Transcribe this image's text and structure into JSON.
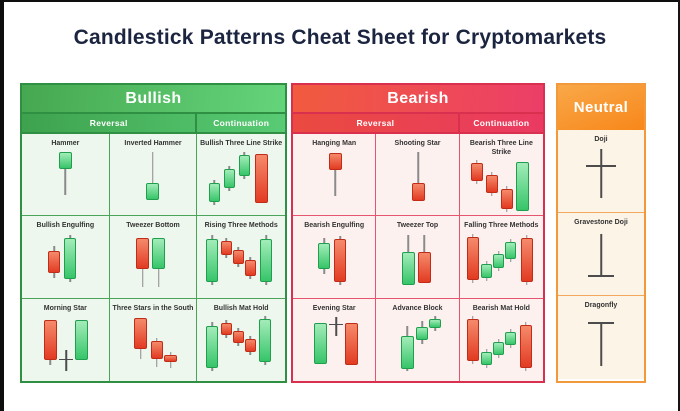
{
  "title": "Candlestick Patterns Cheat Sheet for Cryptomarkets",
  "palette": {
    "title_text": "#1c2540",
    "frame": "#0e0e0e",
    "bullish_border": "#2f9043",
    "bullish_header_gradient": [
      "#46a850",
      "#64d47b"
    ],
    "bullish_cell_bg": "#edf7ee",
    "bearish_border": "#d8304e",
    "bearish_header_gradient": [
      "#f15b3e",
      "#ec3e68"
    ],
    "bearish_cell_bg": "#fdf1f0",
    "neutral_border": "#f2993c",
    "neutral_header_gradient": [
      "#f9a849",
      "#f8871a"
    ],
    "neutral_cell_bg": "#fdf4e8",
    "candle_green": [
      "#a3ecb9",
      "#37c569"
    ],
    "candle_red": [
      "#f58a6b",
      "#e23b22"
    ],
    "wick": "#8a8a8a",
    "doji_line": "#4c4c4c"
  },
  "sections": [
    {
      "id": "bullish",
      "title": "Bullish",
      "subheaders": [
        "Reversal",
        "Continuation"
      ],
      "patterns": [
        {
          "label": "Hammer",
          "marks": [
            {
              "x": 42,
              "w": 13,
              "bt": 2,
              "bb": 19,
              "wt": 2,
              "wb": 45,
              "c": "g"
            }
          ]
        },
        {
          "label": "Inverted Hammer",
          "marks": [
            {
              "x": 42,
              "w": 13,
              "bt": 33,
              "bb": 50,
              "wt": 2,
              "wb": 50,
              "c": "g"
            }
          ]
        },
        {
          "label": "Bullish Three Line Strike",
          "marks": [
            {
              "x": 15,
              "w": 11,
              "bt": 33,
              "bb": 52,
              "wt": 30,
              "wb": 55,
              "c": "g"
            },
            {
              "x": 30,
              "w": 11,
              "bt": 19,
              "bb": 38,
              "wt": 16,
              "wb": 41,
              "c": "g"
            },
            {
              "x": 45,
              "w": 11,
              "bt": 5,
              "bb": 26,
              "wt": 2,
              "wb": 29,
              "c": "g"
            },
            {
              "x": 62,
              "w": 13,
              "bt": 4,
              "bb": 53,
              "wt": 4,
              "wb": 53,
              "c": "r"
            }
          ]
        },
        {
          "label": "Bullish Engulfing",
          "marks": [
            {
              "x": 31,
              "w": 12,
              "bt": 19,
              "bb": 41,
              "wt": 14,
              "wb": 46,
              "c": "r"
            },
            {
              "x": 47,
              "w": 12,
              "bt": 6,
              "bb": 47,
              "wt": 3,
              "wb": 50,
              "c": "g"
            }
          ]
        },
        {
          "label": "Tweezer Bottom",
          "marks": [
            {
              "x": 32,
              "w": 13,
              "bt": 6,
              "bb": 37,
              "wt": 6,
              "wb": 55,
              "c": "r"
            },
            {
              "x": 48,
              "w": 13,
              "bt": 6,
              "bb": 37,
              "wt": 6,
              "wb": 55,
              "c": "g"
            }
          ]
        },
        {
          "label": "Rising Three Methods",
          "marks": [
            {
              "x": 13,
              "w": 12,
              "bt": 7,
              "bb": 50,
              "wt": 3,
              "wb": 53,
              "c": "g"
            },
            {
              "x": 27,
              "w": 11,
              "bt": 9,
              "bb": 23,
              "wt": 6,
              "wb": 26,
              "c": "r"
            },
            {
              "x": 39,
              "w": 11,
              "bt": 18,
              "bb": 32,
              "wt": 15,
              "wb": 35,
              "c": "r"
            },
            {
              "x": 51,
              "w": 11,
              "bt": 28,
              "bb": 44,
              "wt": 25,
              "wb": 47,
              "c": "r"
            },
            {
              "x": 67,
              "w": 12,
              "bt": 7,
              "bb": 50,
              "wt": 3,
              "wb": 53,
              "c": "g"
            }
          ]
        },
        {
          "label": "Morning Star",
          "marks": [
            {
              "x": 27,
              "w": 13,
              "bt": 5,
              "bb": 45,
              "wt": 5,
              "wb": 50,
              "c": "r"
            },
            {
              "t": "d",
              "x": 43,
              "wt": 35,
              "wb": 56,
              "bar": 44,
              "bw": 14
            },
            {
              "x": 58,
              "w": 13,
              "bt": 5,
              "bb": 45,
              "wt": 5,
              "wb": 45,
              "c": "g"
            }
          ]
        },
        {
          "label": "Three Stars in the South",
          "marks": [
            {
              "x": 30,
              "w": 13,
              "bt": 3,
              "bb": 34,
              "wt": 3,
              "wb": 44,
              "c": "r"
            },
            {
              "x": 46,
              "w": 12,
              "bt": 26,
              "bb": 44,
              "wt": 23,
              "wb": 52,
              "c": "r"
            },
            {
              "x": 60,
              "w": 13,
              "bt": 40,
              "bb": 47,
              "wt": 37,
              "wb": 53,
              "c": "r"
            }
          ]
        },
        {
          "label": "Bullish Mat Hold",
          "marks": [
            {
              "x": 13,
              "w": 12,
              "bt": 11,
              "bb": 53,
              "wt": 7,
              "wb": 56,
              "c": "g"
            },
            {
              "x": 27,
              "w": 11,
              "bt": 8,
              "bb": 20,
              "wt": 5,
              "wb": 23,
              "c": "r"
            },
            {
              "x": 39,
              "w": 11,
              "bt": 16,
              "bb": 28,
              "wt": 13,
              "wb": 31,
              "c": "r"
            },
            {
              "x": 51,
              "w": 11,
              "bt": 24,
              "bb": 37,
              "wt": 21,
              "wb": 40,
              "c": "r"
            },
            {
              "x": 66,
              "w": 12,
              "bt": 4,
              "bb": 47,
              "wt": 1,
              "wb": 50,
              "c": "g"
            }
          ]
        }
      ]
    },
    {
      "id": "bearish",
      "title": "Bearish",
      "subheaders": [
        "Reversal",
        "Continuation"
      ],
      "patterns": [
        {
          "label": "Hanging Man",
          "marks": [
            {
              "x": 42,
              "w": 13,
              "bt": 3,
              "bb": 20,
              "wt": 3,
              "wb": 46,
              "c": "r"
            }
          ]
        },
        {
          "label": "Shooting Star",
          "marks": [
            {
              "x": 42,
              "w": 13,
              "bt": 33,
              "bb": 51,
              "wt": 2,
              "wb": 51,
              "c": "r"
            }
          ]
        },
        {
          "label": "Bearish Three Line Strike",
          "marks": [
            {
              "x": 17,
              "w": 12,
              "bt": 4,
              "bb": 22,
              "wt": 1,
              "wb": 25,
              "c": "r"
            },
            {
              "x": 32,
              "w": 12,
              "bt": 16,
              "bb": 34,
              "wt": 13,
              "wb": 37,
              "c": "r"
            },
            {
              "x": 47,
              "w": 12,
              "bt": 30,
              "bb": 50,
              "wt": 27,
              "wb": 53,
              "c": "r"
            },
            {
              "x": 63,
              "w": 13,
              "bt": 3,
              "bb": 52,
              "wt": 3,
              "wb": 52,
              "c": "g"
            }
          ]
        },
        {
          "label": "Bearish Engulfing",
          "marks": [
            {
              "x": 31,
              "w": 12,
              "bt": 11,
              "bb": 37,
              "wt": 6,
              "wb": 42,
              "c": "g"
            },
            {
              "x": 47,
              "w": 12,
              "bt": 7,
              "bb": 50,
              "wt": 4,
              "wb": 53,
              "c": "r"
            }
          ]
        },
        {
          "label": "Tweezer Top",
          "marks": [
            {
              "x": 32,
              "w": 13,
              "bt": 20,
              "bb": 53,
              "wt": 3,
              "wb": 53,
              "c": "g"
            },
            {
              "x": 48,
              "w": 13,
              "bt": 20,
              "bb": 51,
              "wt": 3,
              "wb": 51,
              "c": "r"
            }
          ]
        },
        {
          "label": "Falling Three Methods",
          "marks": [
            {
              "x": 13,
              "w": 12,
              "bt": 5,
              "bb": 48,
              "wt": 2,
              "wb": 51,
              "c": "r"
            },
            {
              "x": 27,
              "w": 11,
              "bt": 32,
              "bb": 46,
              "wt": 29,
              "wb": 49,
              "c": "g"
            },
            {
              "x": 39,
              "w": 11,
              "bt": 22,
              "bb": 36,
              "wt": 19,
              "wb": 39,
              "c": "g"
            },
            {
              "x": 51,
              "w": 11,
              "bt": 10,
              "bb": 27,
              "wt": 7,
              "wb": 30,
              "c": "g"
            },
            {
              "x": 67,
              "w": 12,
              "bt": 6,
              "bb": 50,
              "wt": 3,
              "wb": 53,
              "c": "r"
            }
          ]
        },
        {
          "label": "Evening Star",
          "marks": [
            {
              "x": 27,
              "w": 13,
              "bt": 8,
              "bb": 49,
              "wt": 8,
              "wb": 49,
              "c": "g"
            },
            {
              "t": "d",
              "x": 43,
              "wt": 2,
              "wb": 21,
              "bar": 9,
              "bw": 14
            },
            {
              "x": 58,
              "w": 13,
              "bt": 8,
              "bb": 50,
              "wt": 8,
              "wb": 50,
              "c": "r"
            }
          ]
        },
        {
          "label": "Advance Block",
          "marks": [
            {
              "x": 31,
              "w": 13,
              "bt": 21,
              "bb": 54,
              "wt": 11,
              "wb": 56,
              "c": "g"
            },
            {
              "x": 46,
              "w": 12,
              "bt": 12,
              "bb": 25,
              "wt": 6,
              "wb": 29,
              "c": "g"
            },
            {
              "x": 59,
              "w": 12,
              "bt": 4,
              "bb": 13,
              "wt": 1,
              "wb": 16,
              "c": "g"
            }
          ]
        },
        {
          "label": "Bearish Mat Hold",
          "marks": [
            {
              "x": 13,
              "w": 12,
              "bt": 4,
              "bb": 46,
              "wt": 1,
              "wb": 49,
              "c": "r"
            },
            {
              "x": 27,
              "w": 11,
              "bt": 37,
              "bb": 50,
              "wt": 34,
              "wb": 53,
              "c": "g"
            },
            {
              "x": 39,
              "w": 11,
              "bt": 27,
              "bb": 40,
              "wt": 24,
              "wb": 43,
              "c": "g"
            },
            {
              "x": 51,
              "w": 11,
              "bt": 17,
              "bb": 30,
              "wt": 14,
              "wb": 33,
              "c": "g"
            },
            {
              "x": 66,
              "w": 12,
              "bt": 10,
              "bb": 53,
              "wt": 7,
              "wb": 56,
              "c": "r"
            }
          ]
        }
      ]
    },
    {
      "id": "neutral",
      "title": "Neutral",
      "subheaders": [],
      "patterns": [
        {
          "label": "Doji",
          "marks": [
            {
              "t": "d",
              "x": 42,
              "wt": 3,
              "wb": 52,
              "bar": 19,
              "bw": 30
            }
          ]
        },
        {
          "label": "Gravestone Doji",
          "marks": [
            {
              "t": "d",
              "x": 42,
              "wt": 5,
              "wb": 46,
              "bar": 46,
              "bw": 26
            }
          ]
        },
        {
          "label": "Dragonfly",
          "marks": [
            {
              "t": "d",
              "x": 42,
              "wt": 10,
              "wb": 54,
              "bar": 10,
              "bw": 26
            }
          ]
        }
      ]
    }
  ]
}
